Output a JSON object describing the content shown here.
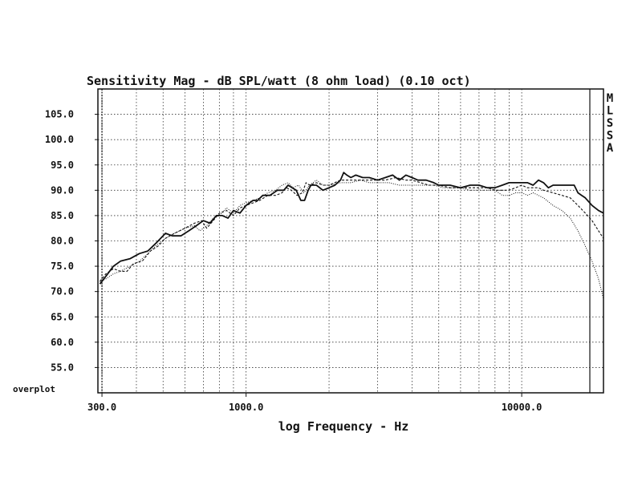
{
  "chart_data": {
    "type": "line",
    "title": "Sensitivity Mag - dB SPL/watt (8 ohm load) (0.10 oct)",
    "xlabel": "log Frequency - Hz",
    "ylabel": "",
    "x_scale": "log",
    "xlim": [
      290,
      19800
    ],
    "ylim": [
      50,
      110
    ],
    "grid": true,
    "x_tick_labels": [
      {
        "value": 300,
        "label": "300.0"
      },
      {
        "value": 1000,
        "label": "1000.0"
      },
      {
        "value": 10000,
        "label": "10000.0"
      }
    ],
    "x_gridlines": [
      300,
      400,
      500,
      600,
      700,
      800,
      900,
      1000,
      2000,
      3000,
      4000,
      5000,
      6000,
      7000,
      8000,
      9000,
      10000,
      20000
    ],
    "y_ticks": [
      {
        "value": 105,
        "label": "105.0"
      },
      {
        "value": 100,
        "label": "100.0"
      },
      {
        "value": 95,
        "label": "95.0"
      },
      {
        "value": 90,
        "label": "90.0"
      },
      {
        "value": 85,
        "label": "85.0"
      },
      {
        "value": 80,
        "label": "80.0"
      },
      {
        "value": 75,
        "label": "75.0"
      },
      {
        "value": 70,
        "label": "70.0"
      },
      {
        "value": 65,
        "label": "65.0"
      },
      {
        "value": 60,
        "label": "60.0"
      },
      {
        "value": 55,
        "label": "55.0"
      }
    ],
    "overplot_label": "overplot",
    "side_letters": [
      "M",
      "L",
      "S",
      "S",
      "A"
    ],
    "series": [
      {
        "style": "solid",
        "points": [
          [
            295,
            71.5
          ],
          [
            310,
            73
          ],
          [
            330,
            75
          ],
          [
            350,
            76
          ],
          [
            380,
            76.5
          ],
          [
            410,
            77.5
          ],
          [
            440,
            78
          ],
          [
            470,
            79.5
          ],
          [
            510,
            81.5
          ],
          [
            540,
            81
          ],
          [
            580,
            81
          ],
          [
            620,
            82
          ],
          [
            660,
            83
          ],
          [
            700,
            84
          ],
          [
            740,
            83.5
          ],
          [
            780,
            85
          ],
          [
            820,
            85
          ],
          [
            860,
            84.5
          ],
          [
            900,
            86
          ],
          [
            950,
            85.5
          ],
          [
            1000,
            87
          ],
          [
            1060,
            88
          ],
          [
            1100,
            88
          ],
          [
            1150,
            89
          ],
          [
            1220,
            89
          ],
          [
            1300,
            90
          ],
          [
            1370,
            90
          ],
          [
            1420,
            91
          ],
          [
            1470,
            90.5
          ],
          [
            1520,
            90
          ],
          [
            1580,
            88
          ],
          [
            1630,
            88
          ],
          [
            1680,
            90
          ],
          [
            1720,
            91
          ],
          [
            1800,
            91
          ],
          [
            1900,
            90
          ],
          [
            2000,
            90.5
          ],
          [
            2100,
            91
          ],
          [
            2200,
            92
          ],
          [
            2260,
            93.5
          ],
          [
            2320,
            93
          ],
          [
            2400,
            92.5
          ],
          [
            2500,
            93
          ],
          [
            2650,
            92.5
          ],
          [
            2800,
            92.5
          ],
          [
            3000,
            92
          ],
          [
            3200,
            92.5
          ],
          [
            3400,
            93
          ],
          [
            3600,
            92
          ],
          [
            3800,
            93
          ],
          [
            4000,
            92.5
          ],
          [
            4200,
            92
          ],
          [
            4500,
            92
          ],
          [
            4800,
            91.5
          ],
          [
            5000,
            91
          ],
          [
            5500,
            91
          ],
          [
            6000,
            90.5
          ],
          [
            6500,
            91
          ],
          [
            7000,
            91
          ],
          [
            7500,
            90.5
          ],
          [
            8000,
            90.5
          ],
          [
            8500,
            91
          ],
          [
            9000,
            91.5
          ],
          [
            9500,
            91.5
          ],
          [
            10000,
            91.5
          ],
          [
            10500,
            91.5
          ],
          [
            11000,
            91
          ],
          [
            11500,
            92
          ],
          [
            12000,
            91.5
          ],
          [
            12500,
            90.5
          ],
          [
            13000,
            91
          ],
          [
            14000,
            91
          ],
          [
            15000,
            91
          ],
          [
            15500,
            91
          ],
          [
            16000,
            89.5
          ],
          [
            16500,
            89
          ],
          [
            17000,
            88.5
          ],
          [
            18000,
            87
          ],
          [
            19000,
            86
          ],
          [
            19800,
            85.5
          ]
        ]
      },
      {
        "style": "dashed",
        "points": [
          [
            295,
            72
          ],
          [
            310,
            73.5
          ],
          [
            330,
            74.5
          ],
          [
            350,
            74
          ],
          [
            370,
            74
          ],
          [
            390,
            75.5
          ],
          [
            420,
            76
          ],
          [
            450,
            78
          ],
          [
            480,
            79
          ],
          [
            510,
            80.5
          ],
          [
            550,
            81.5
          ],
          [
            600,
            82.5
          ],
          [
            650,
            83.5
          ],
          [
            690,
            84
          ],
          [
            720,
            82.5
          ],
          [
            760,
            84
          ],
          [
            800,
            85.5
          ],
          [
            850,
            86
          ],
          [
            900,
            85
          ],
          [
            950,
            86.5
          ],
          [
            1000,
            87
          ],
          [
            1060,
            87.5
          ],
          [
            1120,
            88
          ],
          [
            1200,
            89
          ],
          [
            1280,
            89
          ],
          [
            1350,
            89.5
          ],
          [
            1400,
            90.5
          ],
          [
            1460,
            90
          ],
          [
            1530,
            89
          ],
          [
            1600,
            89.5
          ],
          [
            1650,
            91.5
          ],
          [
            1700,
            91
          ],
          [
            1800,
            91.5
          ],
          [
            1900,
            91
          ],
          [
            2000,
            91
          ],
          [
            2200,
            92
          ],
          [
            2400,
            92
          ],
          [
            2600,
            92
          ],
          [
            2800,
            92
          ],
          [
            3000,
            92
          ],
          [
            3200,
            92
          ],
          [
            3500,
            92.5
          ],
          [
            3800,
            92
          ],
          [
            4000,
            92
          ],
          [
            4300,
            91.5
          ],
          [
            4600,
            91
          ],
          [
            5000,
            91
          ],
          [
            5500,
            90.5
          ],
          [
            6000,
            90.5
          ],
          [
            6500,
            90.5
          ],
          [
            7000,
            90.5
          ],
          [
            7500,
            90.5
          ],
          [
            8000,
            90
          ],
          [
            8500,
            90
          ],
          [
            9000,
            90
          ],
          [
            9500,
            90.5
          ],
          [
            10000,
            91
          ],
          [
            10500,
            90.5
          ],
          [
            11000,
            90.5
          ],
          [
            11500,
            90.5
          ],
          [
            12000,
            90
          ],
          [
            13000,
            89.5
          ],
          [
            14000,
            89
          ],
          [
            15000,
            88.5
          ],
          [
            16000,
            87
          ],
          [
            17000,
            85.5
          ],
          [
            18000,
            84
          ],
          [
            19000,
            82
          ],
          [
            19800,
            80.5
          ]
        ]
      },
      {
        "style": "dotted",
        "points": [
          [
            295,
            72
          ],
          [
            310,
            72.5
          ],
          [
            330,
            73.5
          ],
          [
            350,
            74
          ],
          [
            380,
            75
          ],
          [
            410,
            76
          ],
          [
            440,
            77.5
          ],
          [
            470,
            79
          ],
          [
            510,
            80.5
          ],
          [
            550,
            81.5
          ],
          [
            600,
            82.5
          ],
          [
            650,
            83
          ],
          [
            680,
            82
          ],
          [
            720,
            83
          ],
          [
            760,
            84.5
          ],
          [
            800,
            85
          ],
          [
            850,
            86.5
          ],
          [
            900,
            85.5
          ],
          [
            950,
            87
          ],
          [
            1000,
            87.5
          ],
          [
            1060,
            88
          ],
          [
            1120,
            88.5
          ],
          [
            1200,
            89.5
          ],
          [
            1280,
            90
          ],
          [
            1350,
            91
          ],
          [
            1420,
            91.5
          ],
          [
            1480,
            90.5
          ],
          [
            1550,
            91
          ],
          [
            1620,
            89.5
          ],
          [
            1700,
            91
          ],
          [
            1800,
            92
          ],
          [
            1900,
            91
          ],
          [
            2000,
            91
          ],
          [
            2200,
            91.5
          ],
          [
            2400,
            91.5
          ],
          [
            2600,
            92
          ],
          [
            2800,
            91.5
          ],
          [
            3000,
            91.5
          ],
          [
            3300,
            91.5
          ],
          [
            3600,
            91
          ],
          [
            4000,
            91
          ],
          [
            4400,
            91
          ],
          [
            4800,
            91
          ],
          [
            5200,
            90.5
          ],
          [
            5600,
            90.5
          ],
          [
            6000,
            90.5
          ],
          [
            6500,
            90
          ],
          [
            7000,
            90
          ],
          [
            7500,
            90
          ],
          [
            8000,
            90
          ],
          [
            8500,
            89
          ],
          [
            9000,
            89
          ],
          [
            9500,
            89.5
          ],
          [
            10000,
            89.5
          ],
          [
            10500,
            89
          ],
          [
            11000,
            89.5
          ],
          [
            11500,
            89
          ],
          [
            12000,
            88.5
          ],
          [
            13000,
            87
          ],
          [
            14000,
            86
          ],
          [
            15000,
            84.5
          ],
          [
            16000,
            82
          ],
          [
            17000,
            79
          ],
          [
            18000,
            76
          ],
          [
            19000,
            72.5
          ],
          [
            19800,
            68.5
          ]
        ]
      }
    ]
  }
}
